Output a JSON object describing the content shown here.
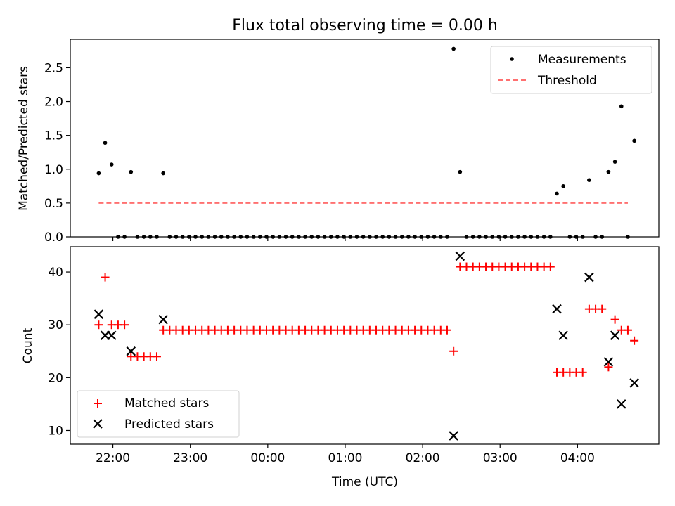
{
  "chart_data": [
    {
      "type": "scatter",
      "title": "Flux total observing time = 0.00 h",
      "ylabel": "Matched/Predicted stars",
      "xlabel": "",
      "xlim": [
        "21:27",
        "05:03"
      ],
      "ylim": [
        0,
        2.92
      ],
      "yticks": [
        "0.0",
        "0.5",
        "1.0",
        "1.5",
        "2.0",
        "2.5"
      ],
      "legend_position": "top-right",
      "series": [
        {
          "name": "Measurements",
          "marker": "dot",
          "color": "#000000",
          "points": [
            [
              "21:49",
              0.94
            ],
            [
              "21:54",
              1.39
            ],
            [
              "21:59",
              1.07
            ],
            [
              "22:04",
              0
            ],
            [
              "22:09",
              0
            ],
            [
              "22:14",
              0.96
            ],
            [
              "22:19",
              0
            ],
            [
              "22:24",
              0
            ],
            [
              "22:29",
              0
            ],
            [
              "22:34",
              0
            ],
            [
              "22:39",
              0.94
            ],
            [
              "22:44",
              0
            ],
            [
              "22:49",
              0
            ],
            [
              "22:54",
              0
            ],
            [
              "22:59",
              0
            ],
            [
              "23:04",
              0
            ],
            [
              "23:09",
              0
            ],
            [
              "23:14",
              0
            ],
            [
              "23:19",
              0
            ],
            [
              "23:24",
              0
            ],
            [
              "23:29",
              0
            ],
            [
              "23:34",
              0
            ],
            [
              "23:39",
              0
            ],
            [
              "23:44",
              0
            ],
            [
              "23:49",
              0
            ],
            [
              "23:54",
              0
            ],
            [
              "23:59",
              0
            ],
            [
              "00:04",
              0
            ],
            [
              "00:09",
              0
            ],
            [
              "00:14",
              0
            ],
            [
              "00:19",
              0
            ],
            [
              "00:24",
              0
            ],
            [
              "00:29",
              0
            ],
            [
              "00:34",
              0
            ],
            [
              "00:39",
              0
            ],
            [
              "00:44",
              0
            ],
            [
              "00:49",
              0
            ],
            [
              "00:54",
              0
            ],
            [
              "00:59",
              0
            ],
            [
              "01:04",
              0
            ],
            [
              "01:09",
              0
            ],
            [
              "01:14",
              0
            ],
            [
              "01:19",
              0
            ],
            [
              "01:24",
              0
            ],
            [
              "01:29",
              0
            ],
            [
              "01:34",
              0
            ],
            [
              "01:39",
              0
            ],
            [
              "01:44",
              0
            ],
            [
              "01:49",
              0
            ],
            [
              "01:54",
              0
            ],
            [
              "01:59",
              0
            ],
            [
              "02:04",
              0
            ],
            [
              "02:09",
              0
            ],
            [
              "02:14",
              0
            ],
            [
              "02:19",
              0
            ],
            [
              "02:24",
              2.78
            ],
            [
              "02:29",
              0.96
            ],
            [
              "02:34",
              0
            ],
            [
              "02:39",
              0
            ],
            [
              "02:44",
              0
            ],
            [
              "02:49",
              0
            ],
            [
              "02:54",
              0
            ],
            [
              "02:59",
              0
            ],
            [
              "03:04",
              0
            ],
            [
              "03:09",
              0
            ],
            [
              "03:14",
              0
            ],
            [
              "03:19",
              0
            ],
            [
              "03:24",
              0
            ],
            [
              "03:29",
              0
            ],
            [
              "03:34",
              0
            ],
            [
              "03:39",
              0
            ],
            [
              "03:44",
              0.64
            ],
            [
              "03:49",
              0.75
            ],
            [
              "03:54",
              0
            ],
            [
              "03:59",
              0
            ],
            [
              "04:04",
              0
            ],
            [
              "04:09",
              0.84
            ],
            [
              "04:14",
              0
            ],
            [
              "04:19",
              0
            ],
            [
              "04:24",
              0.96
            ],
            [
              "04:29",
              1.11
            ],
            [
              "04:34",
              1.93
            ],
            [
              "04:39",
              0
            ],
            [
              "04:44",
              1.42
            ]
          ]
        },
        {
          "name": "Threshold",
          "marker": "dashed-line",
          "color": "#ff7070",
          "x": [
            "21:49",
            "04:39"
          ],
          "y": [
            0.5,
            0.5
          ]
        }
      ]
    },
    {
      "type": "scatter",
      "title": "",
      "ylabel": "Count",
      "xlabel": "Time (UTC)",
      "xlim": [
        "21:27",
        "05:03"
      ],
      "ylim": [
        7.4,
        44.8
      ],
      "yticks": [
        "10",
        "20",
        "30",
        "40"
      ],
      "xticks": [
        "22:00",
        "23:00",
        "00:00",
        "01:00",
        "02:00",
        "03:00",
        "04:00"
      ],
      "legend_position": "bottom-left",
      "series": [
        {
          "name": "Matched stars",
          "marker": "plus",
          "color": "#ff0000",
          "points": [
            [
              "21:49",
              30
            ],
            [
              "21:54",
              39
            ],
            [
              "21:59",
              30
            ],
            [
              "22:04",
              30
            ],
            [
              "22:09",
              30
            ],
            [
              "22:14",
              24
            ],
            [
              "22:19",
              24
            ],
            [
              "22:24",
              24
            ],
            [
              "22:29",
              24
            ],
            [
              "22:34",
              24
            ],
            [
              "22:39",
              29
            ],
            [
              "22:44",
              29
            ],
            [
              "22:49",
              29
            ],
            [
              "22:54",
              29
            ],
            [
              "22:59",
              29
            ],
            [
              "23:04",
              29
            ],
            [
              "23:09",
              29
            ],
            [
              "23:14",
              29
            ],
            [
              "23:19",
              29
            ],
            [
              "23:24",
              29
            ],
            [
              "23:29",
              29
            ],
            [
              "23:34",
              29
            ],
            [
              "23:39",
              29
            ],
            [
              "23:44",
              29
            ],
            [
              "23:49",
              29
            ],
            [
              "23:54",
              29
            ],
            [
              "23:59",
              29
            ],
            [
              "00:04",
              29
            ],
            [
              "00:09",
              29
            ],
            [
              "00:14",
              29
            ],
            [
              "00:19",
              29
            ],
            [
              "00:24",
              29
            ],
            [
              "00:29",
              29
            ],
            [
              "00:34",
              29
            ],
            [
              "00:39",
              29
            ],
            [
              "00:44",
              29
            ],
            [
              "00:49",
              29
            ],
            [
              "00:54",
              29
            ],
            [
              "00:59",
              29
            ],
            [
              "01:04",
              29
            ],
            [
              "01:09",
              29
            ],
            [
              "01:14",
              29
            ],
            [
              "01:19",
              29
            ],
            [
              "01:24",
              29
            ],
            [
              "01:29",
              29
            ],
            [
              "01:34",
              29
            ],
            [
              "01:39",
              29
            ],
            [
              "01:44",
              29
            ],
            [
              "01:49",
              29
            ],
            [
              "01:54",
              29
            ],
            [
              "01:59",
              29
            ],
            [
              "02:04",
              29
            ],
            [
              "02:09",
              29
            ],
            [
              "02:14",
              29
            ],
            [
              "02:19",
              29
            ],
            [
              "02:24",
              25
            ],
            [
              "02:29",
              41
            ],
            [
              "02:34",
              41
            ],
            [
              "02:39",
              41
            ],
            [
              "02:44",
              41
            ],
            [
              "02:49",
              41
            ],
            [
              "02:54",
              41
            ],
            [
              "02:59",
              41
            ],
            [
              "03:04",
              41
            ],
            [
              "03:09",
              41
            ],
            [
              "03:14",
              41
            ],
            [
              "03:19",
              41
            ],
            [
              "03:24",
              41
            ],
            [
              "03:29",
              41
            ],
            [
              "03:34",
              41
            ],
            [
              "03:39",
              41
            ],
            [
              "03:44",
              21
            ],
            [
              "03:49",
              21
            ],
            [
              "03:54",
              21
            ],
            [
              "03:59",
              21
            ],
            [
              "04:04",
              21
            ],
            [
              "04:09",
              33
            ],
            [
              "04:14",
              33
            ],
            [
              "04:19",
              33
            ],
            [
              "04:24",
              22
            ],
            [
              "04:29",
              31
            ],
            [
              "04:34",
              29
            ],
            [
              "04:39",
              29
            ],
            [
              "04:44",
              27
            ]
          ]
        },
        {
          "name": "Predicted stars",
          "marker": "x",
          "color": "#000000",
          "points": [
            [
              "21:49",
              32
            ],
            [
              "21:54",
              28
            ],
            [
              "21:59",
              28
            ],
            [
              "22:14",
              25
            ],
            [
              "22:39",
              31
            ],
            [
              "02:24",
              9
            ],
            [
              "02:29",
              43
            ],
            [
              "03:44",
              33
            ],
            [
              "03:49",
              28
            ],
            [
              "04:09",
              39
            ],
            [
              "04:24",
              23
            ],
            [
              "04:29",
              28
            ],
            [
              "04:34",
              15
            ],
            [
              "04:44",
              19
            ]
          ]
        }
      ]
    }
  ]
}
